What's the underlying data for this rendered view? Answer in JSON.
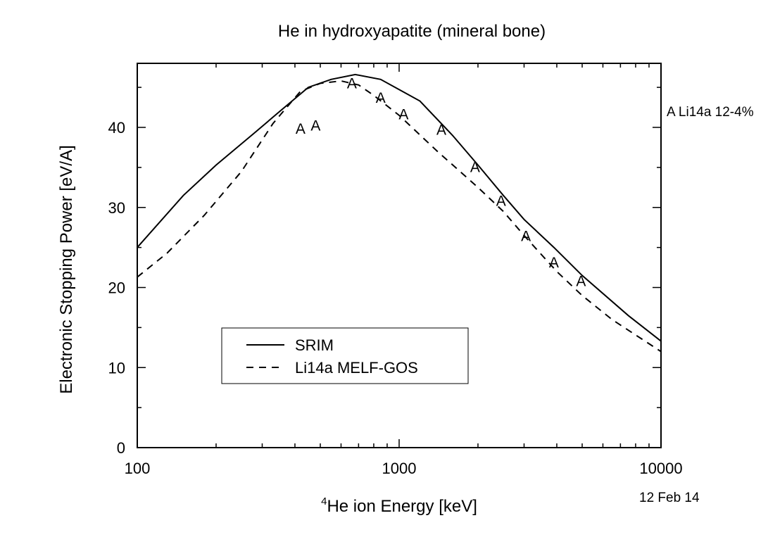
{
  "chart_data": {
    "type": "line",
    "title": "He in hydroxyapatite (mineral bone)",
    "xlabel_sup": "4",
    "xlabel": "He ion Energy [keV]",
    "ylabel": "Electronic Stopping Power [eV/A]",
    "x_scale": "log",
    "xlim": [
      100,
      10000
    ],
    "ylim": [
      0,
      48
    ],
    "x_ticks": [
      100,
      1000,
      10000
    ],
    "x_tick_labels": [
      "100",
      "1000",
      "10000"
    ],
    "y_ticks": [
      0,
      10,
      20,
      30,
      40
    ],
    "y_tick_labels": [
      "0",
      "10",
      "20",
      "30",
      "40"
    ],
    "grid": false,
    "legend_position": "bottom-left",
    "series": [
      {
        "name": "SRIM",
        "style": "solid",
        "x": [
          100,
          150,
          200,
          280,
          350,
          450,
          550,
          680,
          850,
          1200,
          1600,
          2000,
          2500,
          3000,
          3900,
          5000,
          7500,
          10000
        ],
        "y": [
          25,
          31.5,
          35.3,
          39.3,
          42,
          45,
          46,
          46.6,
          46,
          43.3,
          39,
          35.3,
          31.5,
          28.5,
          25,
          21.5,
          16.5,
          13.3
        ]
      },
      {
        "name": "Li14a MELF-GOS",
        "style": "dashed",
        "x": [
          100,
          130,
          180,
          250,
          330,
          420,
          500,
          600,
          700,
          800,
          1000,
          1400,
          2000,
          2500,
          3000,
          4000,
          5000,
          6500,
          10000
        ],
        "y": [
          21.3,
          24.3,
          29,
          34.5,
          40.5,
          44.5,
          45.5,
          45.8,
          45.3,
          44,
          41.5,
          37,
          32.5,
          29.5,
          26.5,
          22,
          19,
          16,
          12
        ]
      }
    ],
    "markers": {
      "symbol": "A",
      "label": "A Li14a 12-4%",
      "points": [
        {
          "x": 420,
          "y": 39.9
        },
        {
          "x": 480,
          "y": 40.3
        },
        {
          "x": 660,
          "y": 45.6
        },
        {
          "x": 850,
          "y": 43.8
        },
        {
          "x": 1040,
          "y": 41.7
        },
        {
          "x": 1450,
          "y": 39.8
        },
        {
          "x": 1950,
          "y": 35.1
        },
        {
          "x": 2450,
          "y": 30.9
        },
        {
          "x": 3050,
          "y": 26.5
        },
        {
          "x": 3900,
          "y": 23.2
        },
        {
          "x": 4950,
          "y": 20.9
        }
      ]
    },
    "date": "12 Feb 14"
  }
}
